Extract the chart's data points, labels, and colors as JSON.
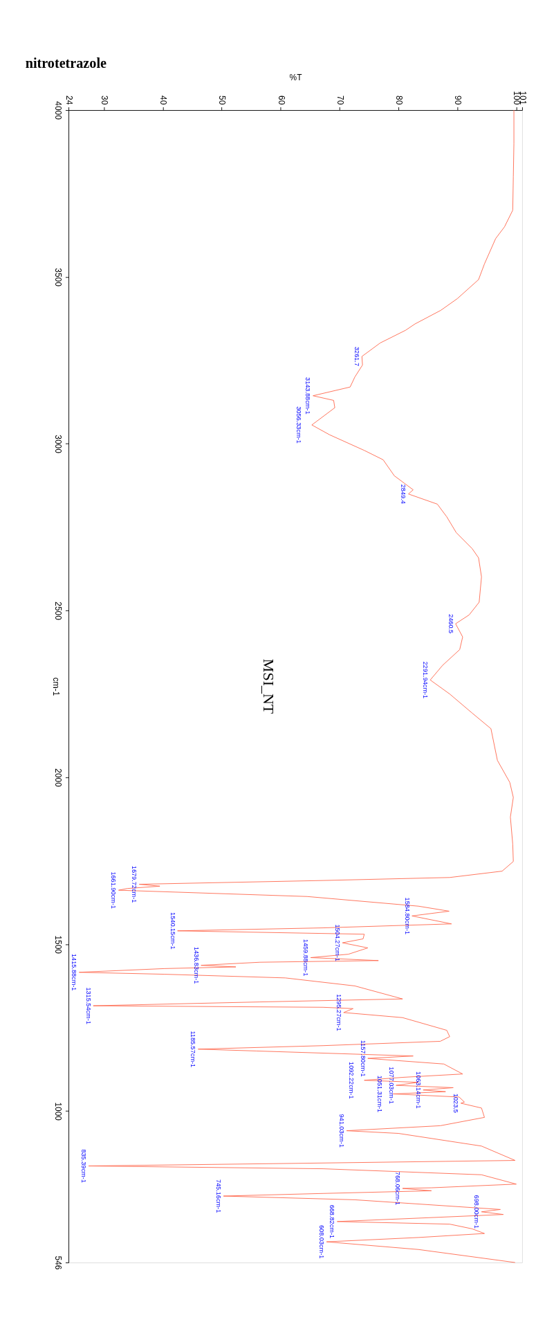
{
  "chart_data": {
    "type": "line",
    "title": "nitrotetrazole",
    "xlabel": "%T",
    "ylabel": "cm-1",
    "xlim": [
      24,
      101
    ],
    "xticks": [
      24,
      30,
      40,
      50,
      60,
      70,
      80,
      90,
      100,
      101
    ],
    "ylim": [
      546,
      4000
    ],
    "yticks": [
      4000,
      3500,
      3000,
      2500,
      2000,
      1500,
      1000,
      546
    ],
    "grid": false,
    "marker": "none",
    "line_style": "solid",
    "series": [
      {
        "color": "#ff6a50",
        "x": [
          99.6,
          99.6,
          99.5,
          99.4,
          98,
          96.5,
          94.6,
          93.6,
          90,
          87.2,
          82.8,
          81.2,
          76.9,
          73.8,
          73.9,
          72.6,
          71.8,
          65.5,
          69,
          69.2,
          65.3,
          68.3,
          74.2,
          77.4,
          79.3,
          82.5,
          81.7,
          86.6,
          88.2,
          89.8,
          92.5,
          93.6,
          94.1,
          93.7,
          92,
          89.7,
          90.9,
          90.4,
          87.5,
          85.4,
          88.7,
          92.5,
          95.7,
          96.8,
          98.9,
          99.5,
          99,
          99.4,
          99.5,
          97.6,
          88.7,
          67.2,
          36.0,
          39.5,
          34,
          32.5,
          64.5,
          83.4,
          88.6,
          82.3,
          89.0,
          67.2,
          42.5,
          74.2,
          74,
          70.5,
          74.8,
          71.5,
          65.1,
          76.6,
          56.5,
          46.5,
          52.4,
          40.3,
          25.8,
          40.3,
          60.8,
          72.6,
          80.7,
          56.5,
          28.2,
          67.2,
          72.3,
          70.7,
          80.7,
          88.2,
          88.7,
          87.1,
          67.2,
          46.0,
          55.9,
          82.5,
          74.8,
          87.7,
          90.9,
          80.7,
          74.2,
          83.4,
          79.6,
          89.3,
          84.2,
          88,
          79.1,
          90.3,
          91.2,
          90.6,
          94.1,
          94.6,
          87.1,
          71.2,
          80,
          94.1,
          99.8,
          61.8,
          27.4,
          67.2,
          94.1,
          100.0,
          85.6,
          80.7,
          85.6,
          67.2,
          50.3,
          72.6,
          97.3,
          94.1,
          97.8,
          83.4,
          69.6,
          88.7,
          92.5,
          94.6,
          83.4,
          67.8,
          83.4,
          99.8
        ],
        "values": [
          4000,
          3900,
          3800,
          3700,
          3650,
          3615,
          3539,
          3492,
          3435,
          3400,
          3359,
          3340,
          3302,
          3261.7,
          3236,
          3200,
          3170,
          3143.88,
          3130,
          3108,
          3056.33,
          3027,
          2980,
          2952,
          2904,
          2862,
          2849.4,
          2819,
          2781,
          2734,
          2686,
          2658,
          2601,
          2525,
          2487,
          2460.5,
          2421,
          2383,
          2336,
          2291.94,
          2250,
          2193,
          2146,
          2051,
          1985,
          1940,
          1881,
          1800,
          1748,
          1719,
          1700,
          1691,
          1679.72,
          1674,
          1667,
          1661.9,
          1643,
          1614,
          1599,
          1584.8,
          1561,
          1549,
          1540.15,
          1530,
          1516,
          1504.27,
          1489,
          1470,
          1459.88,
          1451,
          1446,
          1436.83,
          1432,
          1427,
          1415.88,
          1410,
          1399,
          1375,
          1336,
          1327,
          1315.54,
          1311,
          1307,
          1295.27,
          1280,
          1242,
          1223,
          1209,
          1196,
          1185.57,
          1180,
          1165,
          1157.8,
          1141,
          1111,
          1101,
          1092.22,
          1086,
          1077.03,
          1070,
          1063.14,
          1058,
          1051.31,
          1042,
          1027,
          1023.5,
          1009,
          981,
          956,
          941.03,
          933,
          895,
          852,
          843,
          835.39,
          827,
          809,
          781,
          770,
          768.06,
          761,
          753,
          745.16,
          734,
          705,
          698.0,
          690,
          679,
          668.82,
          661,
          647,
          633,
          621,
          608.03,
          585,
          546
        ]
      }
    ],
    "annotations": [
      "MSI_NT",
      {
        "text": "3261.7",
        "y": 3261.7,
        "x": 73.8
      },
      {
        "text": "3143.88cm-1",
        "y": 3143.88,
        "x": 65.5
      },
      {
        "text": "3056.33cm-1",
        "y": 3056.33,
        "x": 65.3
      },
      {
        "text": "2849.4",
        "y": 2849.4,
        "x": 81.7
      },
      {
        "text": "2460.5",
        "y": 2460.5,
        "x": 89.7
      },
      {
        "text": "2291.94cm-1",
        "y": 2291.94,
        "x": 85.4
      },
      {
        "text": "1679.72cm-1",
        "y": 1679.72,
        "x": 36.0
      },
      {
        "text": "1661.90cm-1",
        "y": 1661.9,
        "x": 32.5
      },
      {
        "text": "1584.80cm-1",
        "y": 1584.8,
        "x": 82.3
      },
      {
        "text": "1540.15cm-1",
        "y": 1540.15,
        "x": 42.5
      },
      {
        "text": "1504.27cm-1",
        "y": 1504.27,
        "x": 70.5
      },
      {
        "text": "1459.88cm-1",
        "y": 1459.88,
        "x": 65.1
      },
      {
        "text": "1436.83cm-1",
        "y": 1436.83,
        "x": 46.5
      },
      {
        "text": "1415.88cm-1",
        "y": 1415.88,
        "x": 25.8
      },
      {
        "text": "1315.54cm-1",
        "y": 1315.54,
        "x": 28.2
      },
      {
        "text": "1295.27cm-1",
        "y": 1295.27,
        "x": 70.7
      },
      {
        "text": "1185.57cm-1",
        "y": 1185.57,
        "x": 46.0
      },
      {
        "text": "1157.80cm-1",
        "y": 1157.8,
        "x": 74.8
      },
      {
        "text": "1092.22cm-1",
        "y": 1092.22,
        "x": 74.2
      },
      {
        "text": "1077.03cm-1",
        "y": 1077.03,
        "x": 79.6
      },
      {
        "text": "1063.14cm-1",
        "y": 1063.14,
        "x": 84.2
      },
      {
        "text": "1051.31cm-1",
        "y": 1051.31,
        "x": 79.1
      },
      {
        "text": "1023.5",
        "y": 1023.5,
        "x": 90.6
      },
      {
        "text": "941.03cm-1",
        "y": 941.03,
        "x": 71.2
      },
      {
        "text": "835.39cm-1",
        "y": 835.39,
        "x": 27.4
      },
      {
        "text": "768.06cm-1",
        "y": 768.06,
        "x": 80.7
      },
      {
        "text": "745.16cm-1",
        "y": 745.16,
        "x": 50.3
      },
      {
        "text": "698.00cm-1",
        "y": 698.0,
        "x": 94.1
      },
      {
        "text": "668.82cm-1",
        "y": 668.82,
        "x": 69.6
      },
      {
        "text": "608.03cm-1",
        "y": 608.03,
        "x": 67.8
      }
    ]
  }
}
